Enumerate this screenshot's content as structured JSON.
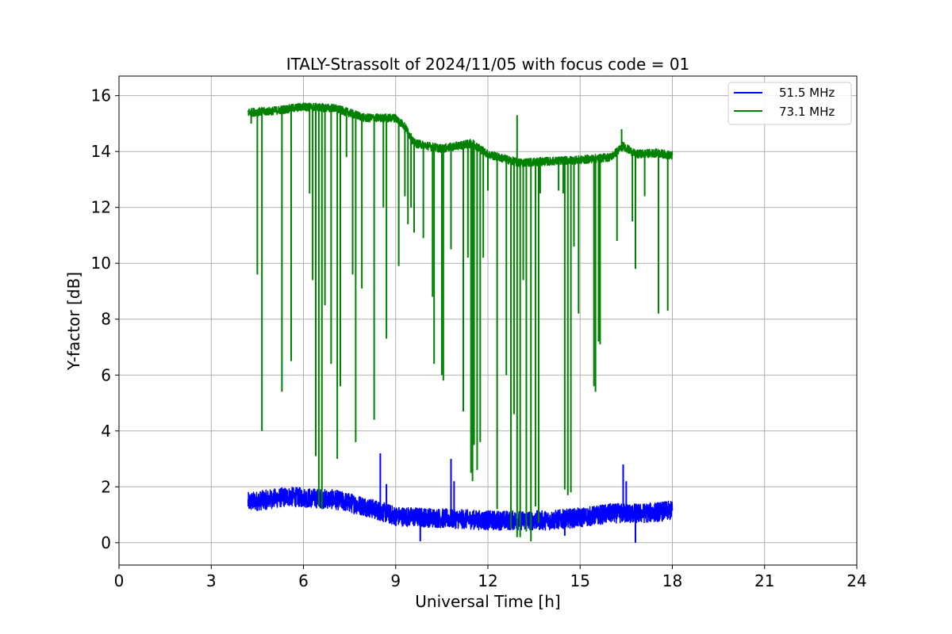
{
  "chart_data": {
    "type": "line",
    "title": "ITALY-Strassolt of 2024/11/05 with focus code = 01",
    "xlabel": "Universal Time [h]",
    "ylabel": "Y-factor [dB]",
    "xlim": [
      0,
      24
    ],
    "ylim": [
      -0.8,
      16.7
    ],
    "xticks": [
      0,
      3,
      6,
      9,
      12,
      15,
      18,
      21,
      24
    ],
    "yticks": [
      0,
      2,
      4,
      6,
      8,
      10,
      12,
      14,
      16
    ],
    "xtick_labels": [
      "0",
      "3",
      "6",
      "9",
      "12",
      "15",
      "18",
      "21",
      "24"
    ],
    "ytick_labels": [
      "0",
      "2",
      "4",
      "6",
      "8",
      "10",
      "12",
      "14",
      "16"
    ],
    "grid": true,
    "legend_position": "top-right",
    "series": [
      {
        "name": "51.5 MHz",
        "color": "#0000ff",
        "baseline": [
          [
            4.2,
            1.45
          ],
          [
            5.5,
            1.65
          ],
          [
            6.2,
            1.6
          ],
          [
            7.0,
            1.55
          ],
          [
            8.0,
            1.3
          ],
          [
            9.0,
            0.95
          ],
          [
            10.0,
            0.9
          ],
          [
            11.0,
            0.85
          ],
          [
            12.0,
            0.8
          ],
          [
            13.0,
            0.8
          ],
          [
            14.0,
            0.8
          ],
          [
            15.0,
            0.9
          ],
          [
            16.0,
            1.05
          ],
          [
            17.0,
            1.05
          ],
          [
            18.0,
            1.15
          ]
        ],
        "noise_amplitude": 0.35,
        "spikes": [
          [
            8.5,
            3.2
          ],
          [
            8.7,
            2.1
          ],
          [
            10.8,
            3.0
          ],
          [
            10.9,
            2.2
          ],
          [
            16.4,
            2.8
          ],
          [
            16.5,
            2.2
          ],
          [
            9.8,
            0.05
          ],
          [
            16.8,
            0.0
          ],
          [
            14.5,
            0.25
          ]
        ]
      },
      {
        "name": "73.1 MHz",
        "color": "#008000",
        "baseline": [
          [
            4.2,
            15.4
          ],
          [
            5.0,
            15.45
          ],
          [
            6.0,
            15.6
          ],
          [
            7.0,
            15.55
          ],
          [
            7.6,
            15.35
          ],
          [
            8.0,
            15.2
          ],
          [
            9.0,
            15.2
          ],
          [
            9.3,
            14.9
          ],
          [
            9.6,
            14.3
          ],
          [
            10.5,
            14.1
          ],
          [
            11.0,
            14.2
          ],
          [
            11.5,
            14.3
          ],
          [
            12.0,
            13.9
          ],
          [
            13.0,
            13.6
          ],
          [
            14.0,
            13.65
          ],
          [
            15.0,
            13.7
          ],
          [
            16.0,
            13.8
          ],
          [
            16.4,
            14.2
          ],
          [
            16.8,
            13.9
          ],
          [
            17.5,
            13.95
          ],
          [
            18.0,
            13.85
          ]
        ],
        "noise_amplitude": 0.15,
        "dips": [
          [
            4.3,
            15.0
          ],
          [
            4.5,
            9.6
          ],
          [
            4.65,
            4.0
          ],
          [
            5.3,
            5.4
          ],
          [
            5.6,
            6.5
          ],
          [
            6.2,
            12.5
          ],
          [
            6.3,
            9.4
          ],
          [
            6.4,
            3.1
          ],
          [
            6.5,
            1.3
          ],
          [
            6.6,
            1.2
          ],
          [
            6.7,
            8.5
          ],
          [
            6.9,
            6.4
          ],
          [
            7.1,
            3.0
          ],
          [
            7.2,
            5.6
          ],
          [
            7.4,
            13.8
          ],
          [
            7.6,
            9.6
          ],
          [
            7.7,
            3.6
          ],
          [
            7.9,
            9.1
          ],
          [
            8.3,
            4.4
          ],
          [
            8.6,
            12.0
          ],
          [
            8.7,
            7.3
          ],
          [
            9.1,
            9.9
          ],
          [
            9.3,
            12.4
          ],
          [
            9.4,
            11.4
          ],
          [
            9.5,
            12.0
          ],
          [
            9.6,
            11.1
          ],
          [
            9.9,
            10.9
          ],
          [
            10.2,
            8.8
          ],
          [
            10.25,
            6.4
          ],
          [
            10.5,
            6.0
          ],
          [
            10.55,
            5.8
          ],
          [
            10.8,
            10.5
          ],
          [
            11.2,
            4.7
          ],
          [
            11.35,
            10.2
          ],
          [
            11.45,
            2.5
          ],
          [
            11.5,
            2.2
          ],
          [
            11.55,
            3.5
          ],
          [
            11.65,
            2.6
          ],
          [
            11.75,
            3.6
          ],
          [
            11.85,
            10.2
          ],
          [
            12.0,
            12.6
          ],
          [
            12.3,
            1.2
          ],
          [
            12.6,
            6.0
          ],
          [
            12.75,
            0.5
          ],
          [
            12.85,
            4.6
          ],
          [
            12.95,
            0.2
          ],
          [
            13.05,
            0.2
          ],
          [
            13.15,
            9.4
          ],
          [
            13.25,
            0.4
          ],
          [
            13.4,
            0.05
          ],
          [
            13.55,
            1.3
          ],
          [
            13.65,
            0.7
          ],
          [
            13.7,
            12.5
          ],
          [
            14.3,
            12.6
          ],
          [
            14.45,
            12.5
          ],
          [
            14.5,
            1.9
          ],
          [
            14.6,
            1.7
          ],
          [
            14.7,
            1.8
          ],
          [
            14.8,
            10.6
          ],
          [
            14.95,
            8.2
          ],
          [
            15.45,
            5.6
          ],
          [
            15.5,
            5.4
          ],
          [
            15.6,
            7.2
          ],
          [
            15.65,
            7.1
          ],
          [
            16.2,
            10.8
          ],
          [
            16.7,
            11.5
          ],
          [
            16.8,
            9.8
          ],
          [
            17.1,
            12.4
          ],
          [
            17.55,
            8.2
          ],
          [
            17.85,
            8.3
          ]
        ],
        "spikes": [
          [
            12.95,
            15.3
          ],
          [
            16.35,
            14.8
          ]
        ]
      }
    ]
  }
}
